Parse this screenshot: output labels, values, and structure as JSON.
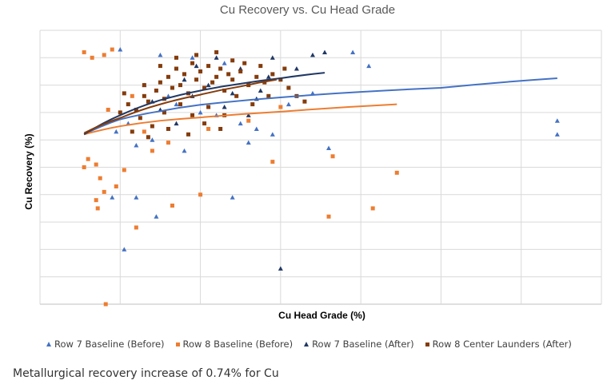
{
  "chart_data": {
    "type": "scatter",
    "title": "Cu Recovery vs. Cu Head Grade",
    "xlabel": "Cu Head Grade (%)",
    "ylabel": "Cu Recovery (%)",
    "xlim": [
      0,
      7
    ],
    "ylim": [
      0,
      10
    ],
    "grid": true,
    "tick_labels_shown": false,
    "legend_position": "bottom",
    "series": [
      {
        "name": "Row 7 Baseline (Before)",
        "marker": "triangle",
        "color": "#4472C4",
        "points": [
          [
            1.0,
            9.3
          ],
          [
            1.5,
            9.1
          ],
          [
            1.9,
            9.0
          ],
          [
            2.3,
            8.8
          ],
          [
            3.9,
            9.2
          ],
          [
            4.1,
            8.7
          ],
          [
            6.45,
            6.7
          ],
          [
            6.45,
            6.2
          ],
          [
            1.05,
            2.0
          ],
          [
            0.9,
            3.9
          ],
          [
            1.2,
            3.9
          ],
          [
            2.4,
            3.9
          ],
          [
            3.6,
            5.7
          ],
          [
            1.45,
            3.2
          ],
          [
            1.3,
            8.0
          ],
          [
            1.6,
            7.6
          ],
          [
            1.7,
            7.3
          ],
          [
            2.0,
            7.0
          ],
          [
            2.2,
            6.9
          ],
          [
            2.5,
            6.6
          ],
          [
            2.7,
            6.4
          ],
          [
            2.9,
            6.2
          ],
          [
            1.1,
            6.6
          ],
          [
            1.4,
            6.0
          ],
          [
            1.8,
            5.6
          ],
          [
            2.6,
            5.9
          ],
          [
            3.1,
            7.3
          ],
          [
            3.4,
            7.7
          ],
          [
            1.2,
            5.8
          ],
          [
            0.95,
            6.3
          ]
        ]
      },
      {
        "name": "Row 8 Baseline (Before)",
        "marker": "square",
        "color": "#ED7D31",
        "points": [
          [
            0.55,
            9.2
          ],
          [
            0.65,
            9.0
          ],
          [
            0.8,
            9.1
          ],
          [
            0.9,
            9.3
          ],
          [
            0.55,
            5.0
          ],
          [
            0.6,
            5.3
          ],
          [
            0.7,
            5.1
          ],
          [
            0.75,
            4.6
          ],
          [
            0.8,
            4.1
          ],
          [
            0.7,
            3.8
          ],
          [
            0.72,
            3.5
          ],
          [
            1.2,
            2.8
          ],
          [
            0.82,
            0.0
          ],
          [
            1.65,
            3.6
          ],
          [
            2.0,
            4.0
          ],
          [
            2.9,
            5.2
          ],
          [
            3.65,
            5.4
          ],
          [
            3.6,
            3.2
          ],
          [
            4.45,
            4.8
          ],
          [
            4.15,
            3.5
          ],
          [
            0.95,
            4.3
          ],
          [
            1.05,
            4.9
          ],
          [
            1.4,
            5.6
          ],
          [
            1.6,
            5.9
          ],
          [
            2.1,
            6.4
          ],
          [
            2.6,
            6.7
          ],
          [
            3.0,
            7.2
          ],
          [
            1.3,
            6.3
          ],
          [
            0.85,
            7.1
          ],
          [
            1.15,
            7.6
          ]
        ]
      },
      {
        "name": "Row 7 Baseline (After)",
        "marker": "triangle",
        "color": "#203864",
        "points": [
          [
            2.2,
            9.0
          ],
          [
            2.9,
            9.0
          ],
          [
            3.4,
            9.1
          ],
          [
            3.55,
            9.2
          ],
          [
            3.0,
            1.3
          ],
          [
            1.8,
            8.2
          ],
          [
            2.1,
            8.0
          ],
          [
            2.4,
            7.7
          ],
          [
            2.7,
            7.5
          ],
          [
            2.85,
            8.3
          ],
          [
            1.5,
            7.1
          ],
          [
            1.9,
            7.6
          ],
          [
            2.5,
            8.6
          ],
          [
            1.7,
            6.6
          ],
          [
            2.3,
            7.2
          ],
          [
            2.6,
            6.9
          ],
          [
            3.2,
            8.6
          ],
          [
            1.4,
            7.4
          ],
          [
            1.95,
            8.7
          ],
          [
            2.75,
            7.8
          ]
        ]
      },
      {
        "name": "Row 8 Center Launders (After)",
        "marker": "square",
        "color": "#843C0C",
        "points": [
          [
            1.0,
            7.0
          ],
          [
            1.1,
            7.3
          ],
          [
            1.2,
            7.1
          ],
          [
            1.3,
            7.6
          ],
          [
            1.35,
            7.4
          ],
          [
            1.45,
            7.8
          ],
          [
            1.5,
            8.1
          ],
          [
            1.55,
            7.5
          ],
          [
            1.6,
            8.3
          ],
          [
            1.65,
            7.9
          ],
          [
            1.7,
            8.6
          ],
          [
            1.75,
            8.0
          ],
          [
            1.8,
            8.4
          ],
          [
            1.85,
            7.7
          ],
          [
            1.9,
            8.8
          ],
          [
            1.95,
            8.2
          ],
          [
            2.0,
            8.5
          ],
          [
            2.05,
            7.9
          ],
          [
            2.1,
            8.7
          ],
          [
            2.15,
            8.1
          ],
          [
            2.2,
            8.3
          ],
          [
            2.25,
            8.6
          ],
          [
            2.3,
            7.8
          ],
          [
            2.35,
            8.4
          ],
          [
            2.4,
            8.2
          ],
          [
            2.5,
            8.5
          ],
          [
            2.6,
            8.0
          ],
          [
            2.7,
            8.3
          ],
          [
            2.8,
            8.1
          ],
          [
            2.9,
            8.4
          ],
          [
            3.0,
            8.2
          ],
          [
            3.1,
            7.9
          ],
          [
            3.2,
            7.6
          ],
          [
            3.3,
            7.4
          ],
          [
            1.25,
            6.8
          ],
          [
            1.4,
            6.5
          ],
          [
            1.55,
            7.0
          ],
          [
            1.75,
            7.3
          ],
          [
            1.9,
            6.9
          ],
          [
            2.1,
            7.2
          ],
          [
            2.3,
            6.9
          ],
          [
            2.45,
            7.6
          ],
          [
            2.65,
            7.3
          ],
          [
            2.85,
            7.6
          ],
          [
            1.15,
            6.3
          ],
          [
            1.35,
            6.1
          ],
          [
            1.6,
            6.4
          ],
          [
            1.85,
            6.2
          ],
          [
            2.05,
            6.6
          ],
          [
            2.25,
            6.4
          ],
          [
            1.05,
            7.7
          ],
          [
            1.3,
            8.0
          ],
          [
            1.5,
            8.7
          ],
          [
            1.7,
            9.0
          ],
          [
            1.95,
            9.1
          ],
          [
            2.2,
            9.2
          ],
          [
            2.4,
            8.9
          ],
          [
            2.55,
            8.8
          ],
          [
            2.75,
            8.7
          ],
          [
            3.05,
            8.6
          ]
        ]
      }
    ],
    "trendlines": [
      {
        "name": "Row 7 Baseline (Before)",
        "color": "#4472C4",
        "x": [
          0.55,
          6.45
        ],
        "y_at": [
          [
            0.55,
            6.2
          ],
          [
            1.0,
            6.75
          ],
          [
            1.5,
            7.05
          ],
          [
            2.0,
            7.28
          ],
          [
            3.0,
            7.55
          ],
          [
            4.0,
            7.75
          ],
          [
            5.0,
            7.9
          ],
          [
            6.45,
            8.25
          ]
        ]
      },
      {
        "name": "Row 8 Baseline (Before)",
        "color": "#ED7D31",
        "x": [
          0.55,
          4.45
        ],
        "y_at": [
          [
            0.55,
            6.2
          ],
          [
            1.0,
            6.5
          ],
          [
            1.5,
            6.7
          ],
          [
            2.0,
            6.82
          ],
          [
            3.0,
            7.03
          ],
          [
            4.45,
            7.3
          ]
        ]
      },
      {
        "name": "Row 7 Baseline (After)",
        "color": "#203864",
        "x": [
          0.55,
          3.55
        ],
        "y_at": [
          [
            0.55,
            6.2
          ],
          [
            1.0,
            6.9
          ],
          [
            1.5,
            7.45
          ],
          [
            2.0,
            7.8
          ],
          [
            2.5,
            8.05
          ],
          [
            3.0,
            8.25
          ],
          [
            3.55,
            8.45
          ]
        ]
      },
      {
        "name": "Row 8 Center Launders (After)",
        "color": "#843C0C",
        "x": [
          0.55,
          2.95
        ],
        "y_at": [
          [
            0.55,
            6.25
          ],
          [
            1.0,
            6.8
          ],
          [
            1.5,
            7.3
          ],
          [
            2.0,
            7.65
          ],
          [
            2.5,
            7.95
          ],
          [
            2.95,
            8.2
          ]
        ]
      }
    ]
  },
  "caption": "Metallurgical recovery increase of 0.74% for Cu"
}
